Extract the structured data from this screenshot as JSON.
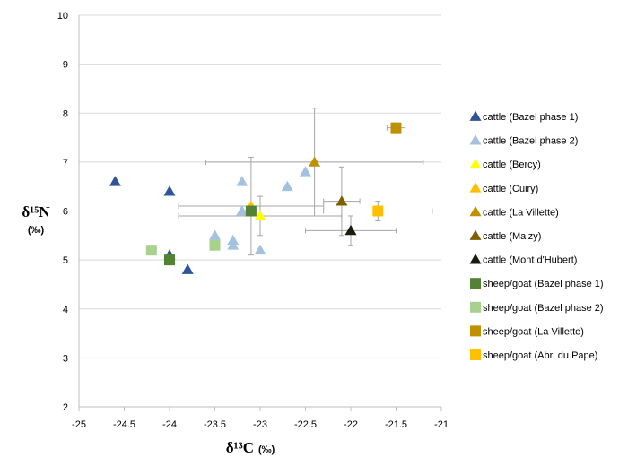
{
  "chart_data": {
    "type": "scatter",
    "title": "",
    "xlabel": "δ¹³C",
    "xlabel_unit": "(‰)",
    "ylabel": "δ¹⁵N",
    "ylabel_unit": "(‰)",
    "xlim": [
      -25,
      -21
    ],
    "ylim": [
      2,
      10
    ],
    "x_ticks": [
      "-25",
      "-24.5",
      "-24",
      "-23.5",
      "-23",
      "-22.5",
      "-22",
      "-21.5",
      "-21"
    ],
    "y_ticks": [
      "2",
      "3",
      "4",
      "5",
      "6",
      "7",
      "8",
      "9",
      "10"
    ],
    "grid": "horizontal",
    "legend_position": "right",
    "series": [
      {
        "name": "cattle (Bazel phase 1)",
        "marker": "triangle",
        "color": "#2e5596",
        "points": [
          {
            "x": -24.6,
            "y": 6.6
          },
          {
            "x": -24.0,
            "y": 6.4
          },
          {
            "x": -24.0,
            "y": 5.1
          },
          {
            "x": -23.8,
            "y": 4.8
          }
        ]
      },
      {
        "name": "cattle (Bazel phase 2)",
        "marker": "triangle",
        "color": "#a4c2e0",
        "points": [
          {
            "x": -23.5,
            "y": 5.5
          },
          {
            "x": -23.5,
            "y": 5.4
          },
          {
            "x": -23.3,
            "y": 5.4
          },
          {
            "x": -23.3,
            "y": 5.3
          },
          {
            "x": -23.2,
            "y": 6.6
          },
          {
            "x": -23.2,
            "y": 6.0
          },
          {
            "x": -23.0,
            "y": 5.2
          },
          {
            "x": -22.7,
            "y": 6.5
          },
          {
            "x": -22.5,
            "y": 6.8
          }
        ]
      },
      {
        "name": "cattle (Bercy)",
        "marker": "triangle",
        "color": "#ffff00",
        "points": [
          {
            "x": -23.0,
            "y": 5.9,
            "xerr": 0.9,
            "yerr": 0.4
          }
        ]
      },
      {
        "name": "cattle (Cuiry)",
        "marker": "triangle",
        "color": "#ffc000",
        "points": [
          {
            "x": -23.1,
            "y": 6.1,
            "xerr": 0.8,
            "yerr": 1.0
          }
        ]
      },
      {
        "name": "cattle (La Villette)",
        "marker": "triangle",
        "color": "#c09000",
        "points": [
          {
            "x": -22.4,
            "y": 7.0,
            "xerr": 1.2,
            "yerr": 1.1
          }
        ]
      },
      {
        "name": "cattle (Maizy)",
        "marker": "triangle",
        "color": "#7f6000",
        "points": [
          {
            "x": -22.1,
            "y": 6.2,
            "xerr": 0.2,
            "yerr": 0.7
          }
        ]
      },
      {
        "name": "cattle (Mont d'Hubert)",
        "marker": "triangle",
        "color": "#1a1a0d",
        "points": [
          {
            "x": -22.0,
            "y": 5.6,
            "xerr": 0.5,
            "yerr": 0.3
          }
        ]
      },
      {
        "name": "sheep/goat (Bazel phase 1)",
        "marker": "square",
        "color": "#548235",
        "points": [
          {
            "x": -24.0,
            "y": 5.0
          },
          {
            "x": -23.1,
            "y": 6.0
          }
        ]
      },
      {
        "name": "sheep/goat (Bazel phase 2)",
        "marker": "square",
        "color": "#a9d18e",
        "points": [
          {
            "x": -24.2,
            "y": 5.2
          },
          {
            "x": -23.5,
            "y": 5.3
          }
        ]
      },
      {
        "name": "sheep/goat (La Villette)",
        "marker": "square",
        "color": "#bf9000",
        "points": [
          {
            "x": -21.5,
            "y": 7.7,
            "xerr": 0.1,
            "yerr": 0.05
          }
        ]
      },
      {
        "name": "sheep/goat (Abri du Pape)",
        "marker": "square",
        "color": "#ffc000",
        "points": [
          {
            "x": -21.7,
            "y": 6.0,
            "xerr": 0.6,
            "yerr": 0.2
          }
        ]
      }
    ]
  }
}
